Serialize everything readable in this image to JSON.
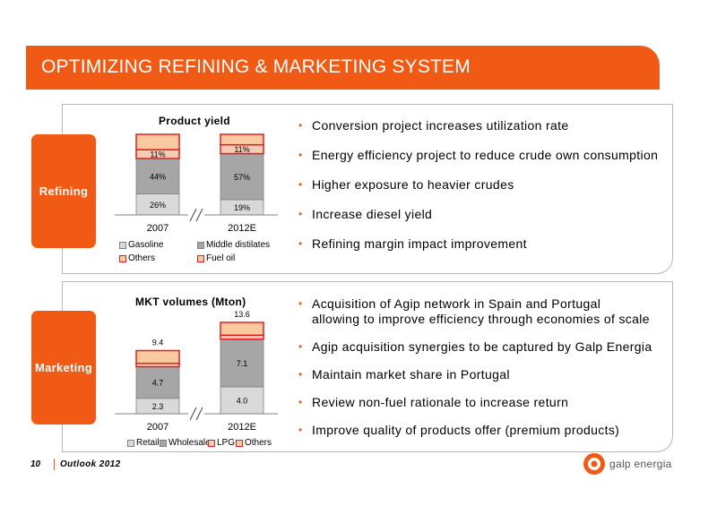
{
  "header": {
    "title": "OPTIMIZING REFINING & MARKETING SYSTEM"
  },
  "refining": {
    "tab_label": "Refining",
    "chart_title": "Product yield",
    "bullets": [
      "Conversion project increases utilization rate",
      "Energy efficiency project to reduce crude own consumption",
      "Higher exposure to heavier crudes",
      "Increase diesel yield",
      "Refining margin impact improvement"
    ],
    "legend": [
      "Gasoline",
      "Middle distilates",
      "Others",
      "Fuel oil"
    ]
  },
  "marketing": {
    "tab_label": "Marketing",
    "chart_title": "MKT volumes (Mton)",
    "bullets": [
      "Acquisition of Agip network in Spain and Portugal",
      "allowing to improve efficiency through economies of scale",
      "Agip acquisition synergies to be captured by Galp Energia",
      "Maintain market share in Portugal",
      "Review non-fuel rationale to increase return",
      "Improve quality of products offer (premium products)"
    ],
    "legend": [
      "Retail",
      "Wholesale",
      "LPG",
      "Others"
    ]
  },
  "chart_data": [
    {
      "type": "bar",
      "title": "Product yield",
      "categories": [
        "2007",
        "2012E"
      ],
      "stacked": true,
      "series": [
        {
          "name": "Gasoline",
          "values": [
            26,
            19
          ],
          "color": "#d9d9d9"
        },
        {
          "name": "Middle distilates",
          "values": [
            44,
            57
          ],
          "color": "#a6a6a6"
        },
        {
          "name": "Fuel oil",
          "values": [
            11,
            11
          ],
          "color": "#f4cbb4"
        },
        {
          "name": "Others",
          "values": [
            19,
            13
          ],
          "color": "#fbc9a0"
        }
      ],
      "data_labels": {
        "2007": [
          "26%",
          "44%",
          "11%"
        ],
        "2012E": [
          "19%",
          "57%",
          "11%"
        ]
      },
      "legend": "bottom"
    },
    {
      "type": "bar",
      "title": "MKT volumes (Mton)",
      "categories": [
        "2007",
        "2012E"
      ],
      "stacked": true,
      "totals": [
        9.4,
        13.6
      ],
      "series": [
        {
          "name": "Retail",
          "values": [
            2.3,
            4.0
          ],
          "color": "#d9d9d9"
        },
        {
          "name": "Wholesale",
          "values": [
            4.7,
            7.1
          ],
          "color": "#a6a6a6"
        },
        {
          "name": "LPG",
          "values": [
            0.5,
            0.6
          ],
          "color": "#f4cbb4"
        },
        {
          "name": "Others",
          "values": [
            1.9,
            1.9
          ],
          "color": "#fbc9a0"
        }
      ],
      "legend": "bottom"
    }
  ],
  "footer": {
    "page": "10",
    "label": "Outlook 2012"
  },
  "logo": {
    "text": "galp energia"
  },
  "colors": {
    "accent": "#f05a14",
    "highlight_border": "#e02020"
  }
}
